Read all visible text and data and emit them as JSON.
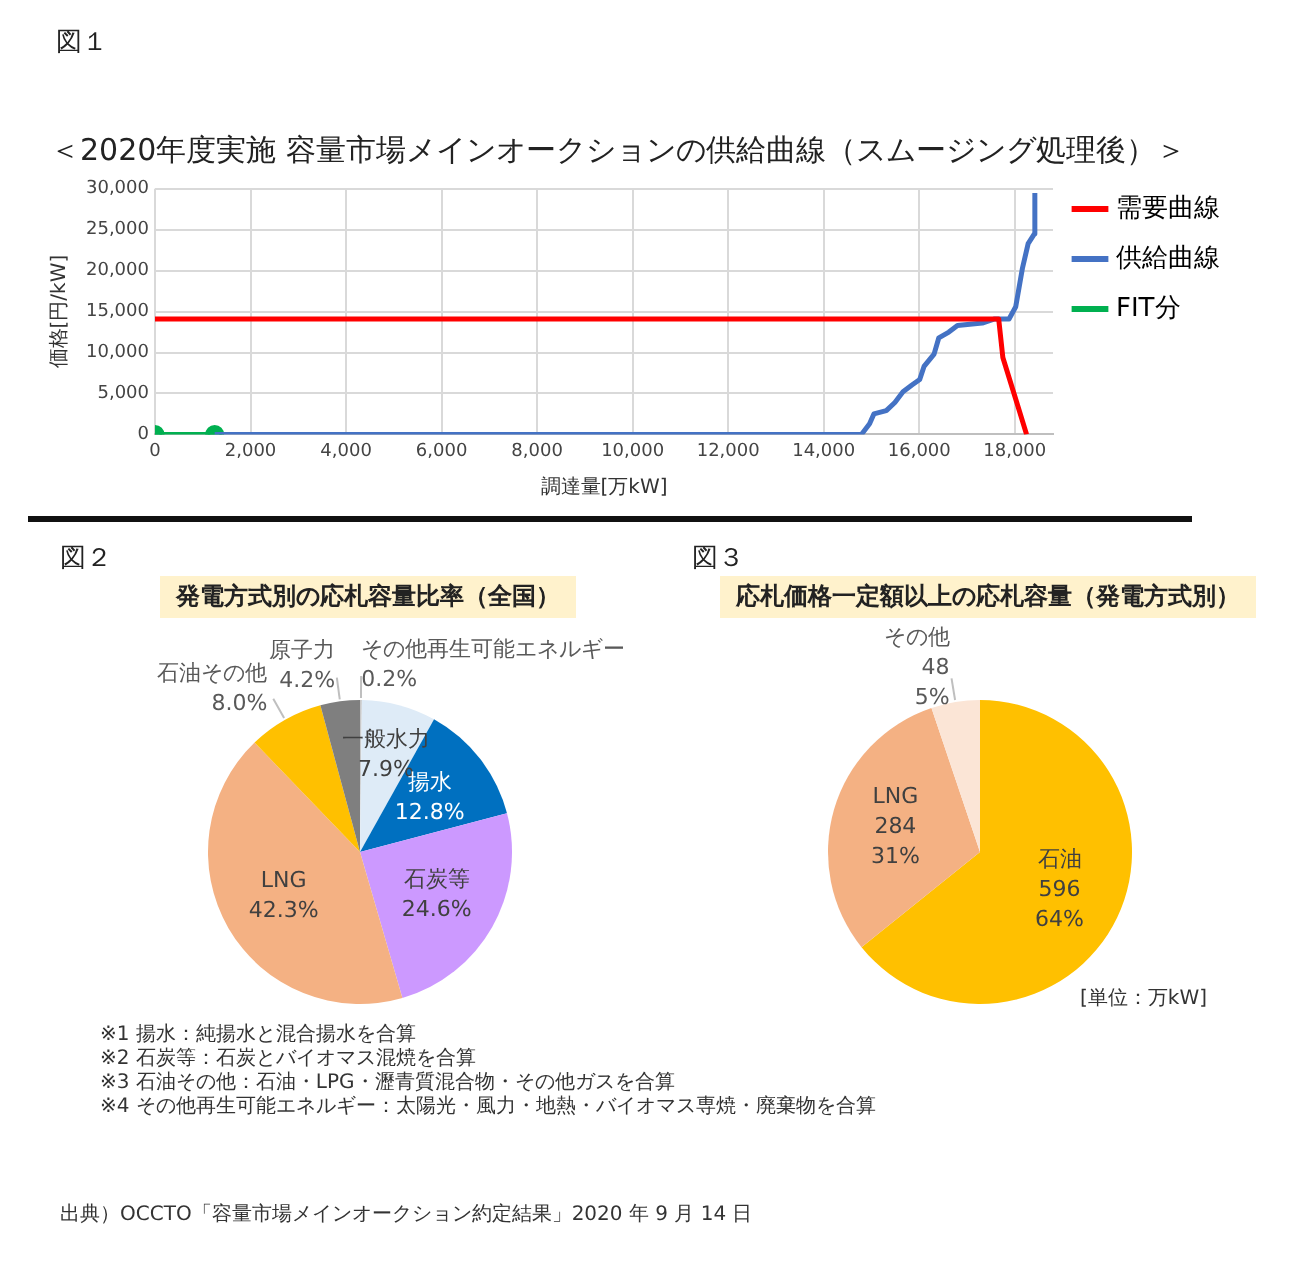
{
  "chart_data": [
    {
      "type": "line",
      "title": "＜2020年度実施 容量市場メインオークションの供給曲線（スムージング処理後）＞",
      "xlabel": "調達量[万kW]",
      "ylabel": "価格[円/kW]",
      "xlim": [
        0,
        18800
      ],
      "xticks": [
        0,
        {
          "value": 2000,
          "label": "2,000"
        },
        {
          "value": 4000,
          "label": "4,000"
        },
        {
          "value": 6000,
          "label": "6,000"
        },
        {
          "value": 8000,
          "label": "8,000"
        },
        {
          "value": 10000,
          "label": "10,000"
        },
        {
          "value": 12000,
          "label": "12,000"
        },
        {
          "value": 14000,
          "label": "14,000"
        },
        {
          "value": 16000,
          "label": "16,000"
        },
        {
          "value": 18000,
          "label": "18,000"
        }
      ],
      "ylim": [
        0,
        30000
      ],
      "yticks": [
        0,
        {
          "value": 5000,
          "label": "5,000"
        },
        {
          "value": 10000,
          "label": "10,000"
        },
        {
          "value": 15000,
          "label": "15,000"
        },
        {
          "value": 20000,
          "label": "20,000"
        },
        {
          "value": 25000,
          "label": "25,000"
        },
        {
          "value": 30000,
          "label": "30,000"
        }
      ],
      "grid": true,
      "legend": "right",
      "annotations": [
        "図１"
      ],
      "series": [
        {
          "name": "需要曲線",
          "color": "#ff0000",
          "x": [
            0,
            17663,
            17750,
            18247
          ],
          "values": [
            14100,
            14100,
            9400,
            0
          ]
        },
        {
          "name": "供給曲線",
          "color": "#4472c4",
          "x": [
            1250,
            14790,
            14960,
            15050,
            15310,
            15490,
            15660,
            15840,
            16010,
            16100,
            16310,
            16410,
            16620,
            16800,
            17320,
            17580,
            17880,
            18020,
            18160,
            18280,
            18410,
            18420
          ],
          "values": [
            0,
            0,
            1300,
            2500,
            2900,
            3900,
            5200,
            6000,
            6700,
            8300,
            9800,
            11800,
            12500,
            13300,
            13600,
            14100,
            14100,
            15600,
            20300,
            23300,
            24500,
            29500
          ]
        },
        {
          "name": "FIT分",
          "color": "#00b050",
          "marker": "circle",
          "x": [
            0,
            1250
          ],
          "values": [
            0,
            0
          ]
        }
      ]
    },
    {
      "type": "pie",
      "title": "発電方式別の応札容量比率（全国）",
      "categories": [
        "その他再生可能エネルギー",
        "一般水力",
        "揚水",
        "石炭等",
        "LNG",
        "石油その他",
        "原子力"
      ],
      "values": [
        0.2,
        7.9,
        12.8,
        24.6,
        42.3,
        8.0,
        4.2
      ],
      "colors": [
        "#c9c9c9",
        "#deebf7",
        "#0070c0",
        "#cc99ff",
        "#f4b183",
        "#ffc000",
        "#7f7f7f"
      ],
      "value_labels": [
        "0.2%",
        "7.9%",
        "12.8%",
        "24.6%",
        "42.3%",
        "8.0%",
        "4.2%"
      ],
      "annotations": [
        "図２",
        "※1 揚水：純揚水と混合揚水を合算",
        "※2 石炭等：石炭とバイオマス混焼を合算",
        "※3 石油その他：石油・LPG・瀝青質混合物・その他ガスを合算",
        "※4 その他再生可能エネルギー：太陽光・風力・地熱・バイオマス専焼・廃棄物を合算"
      ]
    },
    {
      "type": "pie",
      "title": "応札価格一定額以上の応札容量（発電方式別）",
      "categories": [
        "石油",
        "LNG",
        "その他"
      ],
      "values": [
        596,
        284,
        48
      ],
      "colors": [
        "#ffc000",
        "#f4b183",
        "#fbe5d6"
      ],
      "value_labels": [
        "596\n64%",
        "284\n31%",
        "48\n5%"
      ],
      "annotations": [
        "図３",
        "[単位：万kW]",
        "出典）OCCTO「容量市場メインオークション約定結果」2020 年 9 月 14 日"
      ]
    }
  ]
}
